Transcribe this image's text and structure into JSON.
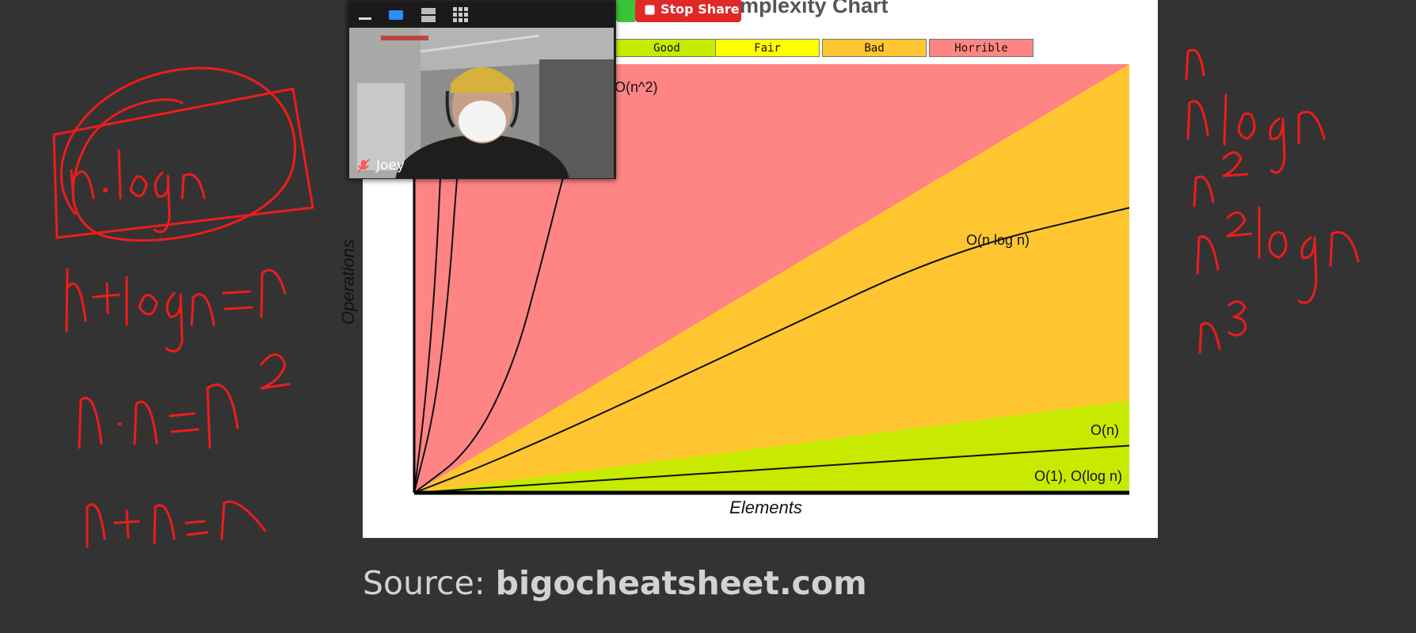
{
  "slide": {
    "title": "mplexity Chart",
    "source_prefix": "Source: ",
    "source_site": "bigocheatsheet.com"
  },
  "legend": [
    {
      "label": "Good",
      "color": "#c8ea00"
    },
    {
      "label": "Fair",
      "color": "#ffff00"
    },
    {
      "label": "Bad",
      "color": "#ffc631"
    },
    {
      "label": "Horrible",
      "color": "#ff8585"
    }
  ],
  "chart_data": {
    "type": "area",
    "title": "",
    "xlabel": "Elements",
    "ylabel": "Operations",
    "xlim": [
      0,
      100
    ],
    "ylim": [
      0,
      100
    ],
    "grid": false,
    "legend_placement": "top",
    "region_colors": {
      "horrible": "#ff8585",
      "bad": "#ffc631",
      "good": "#c8ea00"
    },
    "regions": [
      {
        "name": "Horrible",
        "upper": [
          [
            0,
            100
          ],
          [
            100,
            100
          ]
        ]
      },
      {
        "name": "Bad",
        "upper": [
          [
            0,
            0
          ],
          [
            100,
            100
          ]
        ]
      },
      {
        "name": "Good",
        "upper": [
          [
            0,
            0
          ],
          [
            100,
            21.5
          ]
        ]
      }
    ],
    "curves": [
      {
        "label": "O(1), O(log n)",
        "points": [
          [
            0,
            0
          ],
          [
            100,
            0
          ]
        ]
      },
      {
        "label": "O(n)",
        "points": [
          [
            0,
            0
          ],
          [
            25,
            2.8
          ],
          [
            50,
            5.5
          ],
          [
            75,
            8.3
          ],
          [
            100,
            11
          ]
        ]
      },
      {
        "label": "O(n log n)",
        "points": [
          [
            0,
            0
          ],
          [
            10,
            6.5
          ],
          [
            25,
            17.5
          ],
          [
            50,
            37
          ],
          [
            75,
            56.5
          ],
          [
            100,
            66.5
          ]
        ]
      },
      {
        "label": "O(n^2)",
        "points": [
          [
            0,
            0
          ],
          [
            8,
            10
          ],
          [
            14,
            30
          ],
          [
            18,
            55
          ],
          [
            21,
            75
          ],
          [
            23,
            86
          ]
        ]
      },
      {
        "label": "",
        "points": [
          [
            0,
            0
          ],
          [
            3,
            20
          ],
          [
            5,
            50
          ],
          [
            6,
            75
          ],
          [
            7,
            86
          ]
        ]
      },
      {
        "label": "",
        "points": [
          [
            0,
            0
          ],
          [
            1.5,
            20
          ],
          [
            3,
            50
          ],
          [
            4,
            86
          ]
        ]
      }
    ]
  },
  "zoom": {
    "participant_name": "Joey",
    "stop_share_label": "Stop Share"
  },
  "annotations": {
    "left": [
      "n·logn",
      "n+logn=n",
      "n·n=n²",
      "n+n=n"
    ],
    "right": [
      "n",
      "nlogn",
      "n²",
      "n²logn",
      "n³"
    ]
  }
}
